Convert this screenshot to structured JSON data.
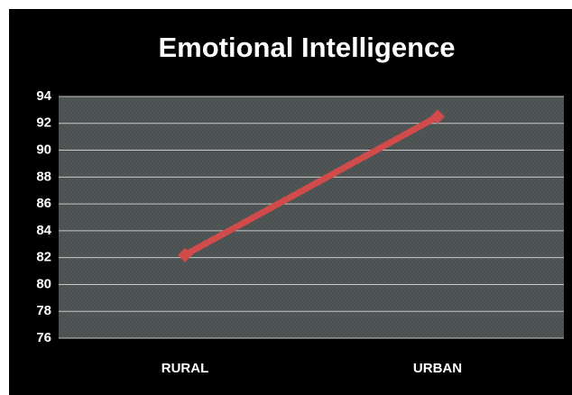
{
  "chart_data": {
    "type": "line",
    "title": "Emotional Intelligence",
    "categories": [
      "RURAL",
      "URBAN"
    ],
    "series": [
      {
        "name": "Emotional Intelligence",
        "color": "#d24b4b",
        "values": [
          82.2,
          92.5
        ]
      }
    ],
    "ylim": [
      76,
      94
    ],
    "yticks": [
      76,
      78,
      80,
      82,
      84,
      86,
      88,
      90,
      92,
      94
    ],
    "grid": true
  }
}
